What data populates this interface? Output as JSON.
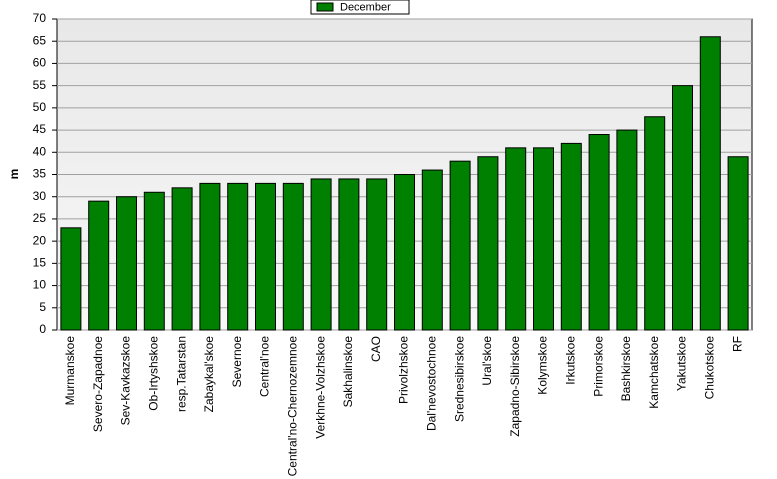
{
  "chart_data": {
    "type": "bar",
    "y_label": "m",
    "categories": [
      "Murmanskoe",
      "Severo-Zapadnoe",
      "Sev-Kavkazskoe",
      "Ob-Irtyshskoe",
      "resp.Tatarstan",
      "Zabaykal'skoe",
      "Severnoe",
      "Central'noe",
      "Central'no-Chernozemnoe",
      "Verkhne-Volzhskoe",
      "Sakhalinskoe",
      "CAO",
      "Privolzhskoe",
      "Dal'nevostochnoe",
      "Srednesibirskoe",
      "Ural'skoe",
      "Zapadno-Sibirskoe",
      "Kolymskoe",
      "Irkutskoe",
      "Primorskoe",
      "Bashkirskoe",
      "Kamchatskoe",
      "Yakutskoe",
      "Chukotskoe",
      "RF"
    ],
    "series": [
      {
        "name": "December",
        "color": "#008000",
        "values": [
          23,
          29,
          30,
          31,
          32,
          33,
          33,
          33,
          33,
          34,
          34,
          34,
          35,
          36,
          38,
          39,
          41,
          41,
          42,
          44,
          45,
          48,
          55,
          66,
          39
        ]
      }
    ],
    "ylim": [
      0,
      70
    ],
    "yticks": [
      0,
      5,
      10,
      15,
      20,
      25,
      30,
      35,
      40,
      45,
      50,
      55,
      60,
      65,
      70
    ],
    "grid": true
  }
}
